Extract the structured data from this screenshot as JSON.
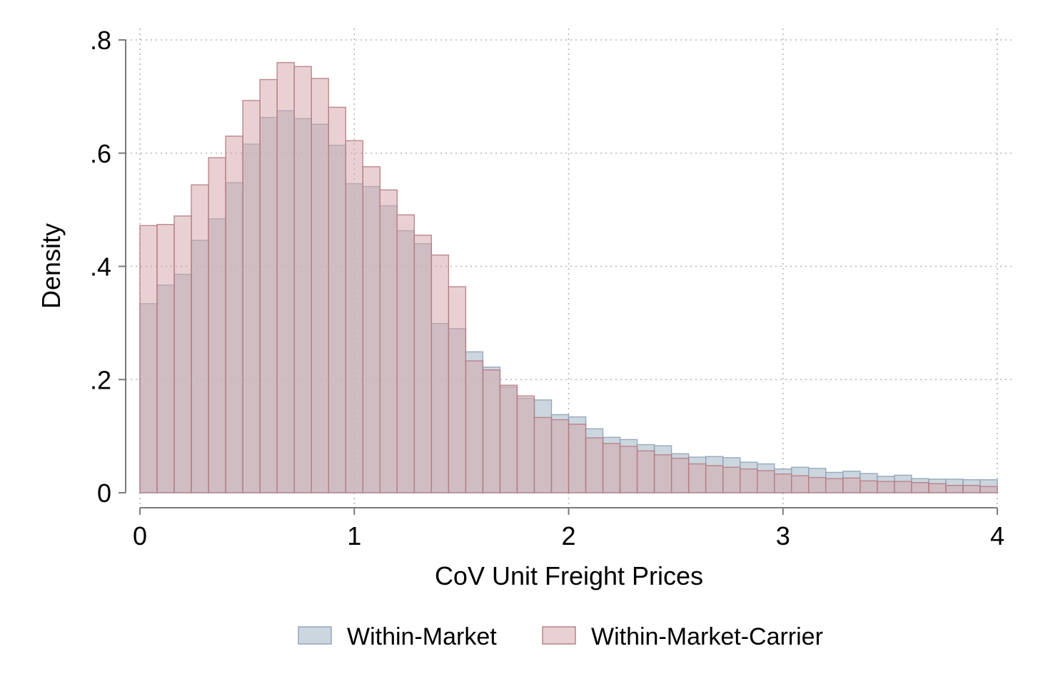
{
  "chart_data": {
    "type": "bar",
    "subtype": "overlaid-histogram",
    "title": "",
    "xlabel": "CoV Unit Freight Prices",
    "ylabel": "Density",
    "xlim": [
      0,
      4
    ],
    "ylim": [
      0,
      0.8
    ],
    "bin_width": 0.08,
    "xticks": [
      0,
      1,
      2,
      3,
      4
    ],
    "xtick_labels": [
      "0",
      "1",
      "2",
      "3",
      "4"
    ],
    "yticks": [
      0,
      0.2,
      0.4,
      0.6,
      0.8
    ],
    "ytick_labels": [
      "0",
      ".2",
      ".4",
      ".6",
      ".8"
    ],
    "grid": true,
    "legend_position": "bottom",
    "series": [
      {
        "name": "Within-Market",
        "color": "#b6c4d2",
        "stroke": "#8fa2b6",
        "opacity": 0.7,
        "values": [
          0.334,
          0.367,
          0.386,
          0.446,
          0.484,
          0.548,
          0.616,
          0.663,
          0.675,
          0.661,
          0.651,
          0.614,
          0.546,
          0.541,
          0.507,
          0.463,
          0.44,
          0.299,
          0.29,
          0.249,
          0.222,
          0.187,
          0.167,
          0.164,
          0.138,
          0.134,
          0.113,
          0.098,
          0.094,
          0.085,
          0.083,
          0.069,
          0.063,
          0.064,
          0.062,
          0.054,
          0.051,
          0.042,
          0.045,
          0.043,
          0.036,
          0.038,
          0.034,
          0.029,
          0.031,
          0.025,
          0.024,
          0.024,
          0.023,
          0.023
        ]
      },
      {
        "name": "Within-Market-Carrier",
        "color": "#d4a3a8",
        "stroke": "#b57c83",
        "opacity": 0.5,
        "values": [
          0.472,
          0.474,
          0.489,
          0.544,
          0.592,
          0.63,
          0.693,
          0.73,
          0.76,
          0.753,
          0.732,
          0.681,
          0.622,
          0.576,
          0.535,
          0.491,
          0.455,
          0.42,
          0.364,
          0.233,
          0.217,
          0.19,
          0.171,
          0.133,
          0.129,
          0.121,
          0.097,
          0.087,
          0.082,
          0.074,
          0.067,
          0.061,
          0.051,
          0.048,
          0.045,
          0.042,
          0.039,
          0.033,
          0.03,
          0.027,
          0.025,
          0.026,
          0.021,
          0.02,
          0.02,
          0.018,
          0.016,
          0.013,
          0.013,
          0.011
        ]
      }
    ]
  },
  "legend": {
    "items": [
      {
        "label": "Within-Market"
      },
      {
        "label": "Within-Market-Carrier"
      }
    ]
  }
}
